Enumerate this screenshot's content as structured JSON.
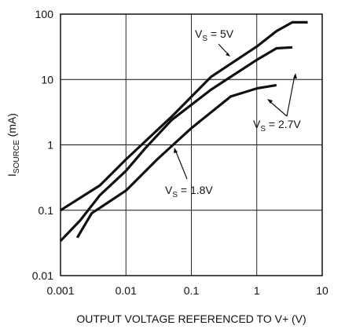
{
  "chart_data": {
    "type": "line",
    "xlabel": "OUTPUT VOLTAGE REFERENCED TO V+ (V)",
    "ylabel_main": "I",
    "ylabel_sub": "SOURCE",
    "ylabel_rest": " (mA)",
    "x_scale": "log",
    "y_scale": "log",
    "xlim": [
      0.001,
      10
    ],
    "ylim": [
      0.01,
      100
    ],
    "grid": true,
    "x_ticks": [
      {
        "value": 0.001,
        "label": "0.001"
      },
      {
        "value": 0.01,
        "label": "0.01"
      },
      {
        "value": 0.1,
        "label": "0.1"
      },
      {
        "value": 1,
        "label": "1"
      },
      {
        "value": 10,
        "label": "10"
      }
    ],
    "y_ticks": [
      {
        "value": 0.01,
        "label": "0.01"
      },
      {
        "value": 0.1,
        "label": "0.1"
      },
      {
        "value": 1,
        "label": "1"
      },
      {
        "value": 10,
        "label": "10"
      },
      {
        "value": 100,
        "label": "100"
      }
    ],
    "series": [
      {
        "name": "VS = 5V",
        "label_main": "V",
        "label_sub": "S",
        "label_rest": " = 5V",
        "x": [
          0.001,
          0.004,
          0.01,
          0.05,
          0.2,
          1,
          2,
          3.5,
          6
        ],
        "y": [
          0.1,
          0.24,
          0.6,
          2.7,
          11,
          32,
          55,
          75,
          75
        ]
      },
      {
        "name": "VS = 2.7V",
        "label_main": "V",
        "label_sub": "S",
        "label_rest": " = 2.7V",
        "x": [
          0.001,
          0.002,
          0.004,
          0.01,
          0.02,
          0.05,
          0.2,
          1,
          2,
          3.5
        ],
        "y": [
          0.034,
          0.07,
          0.17,
          0.4,
          0.9,
          2.4,
          7,
          20,
          30,
          31
        ]
      },
      {
        "name": "VS = 1.8V",
        "label_main": "V",
        "label_sub": "S",
        "label_rest": " = 1.8V",
        "x": [
          0.0018,
          0.003,
          0.01,
          0.03,
          0.1,
          0.4,
          1,
          2
        ],
        "y": [
          0.038,
          0.09,
          0.2,
          0.6,
          1.8,
          5.5,
          7.3,
          8.2
        ]
      }
    ]
  }
}
